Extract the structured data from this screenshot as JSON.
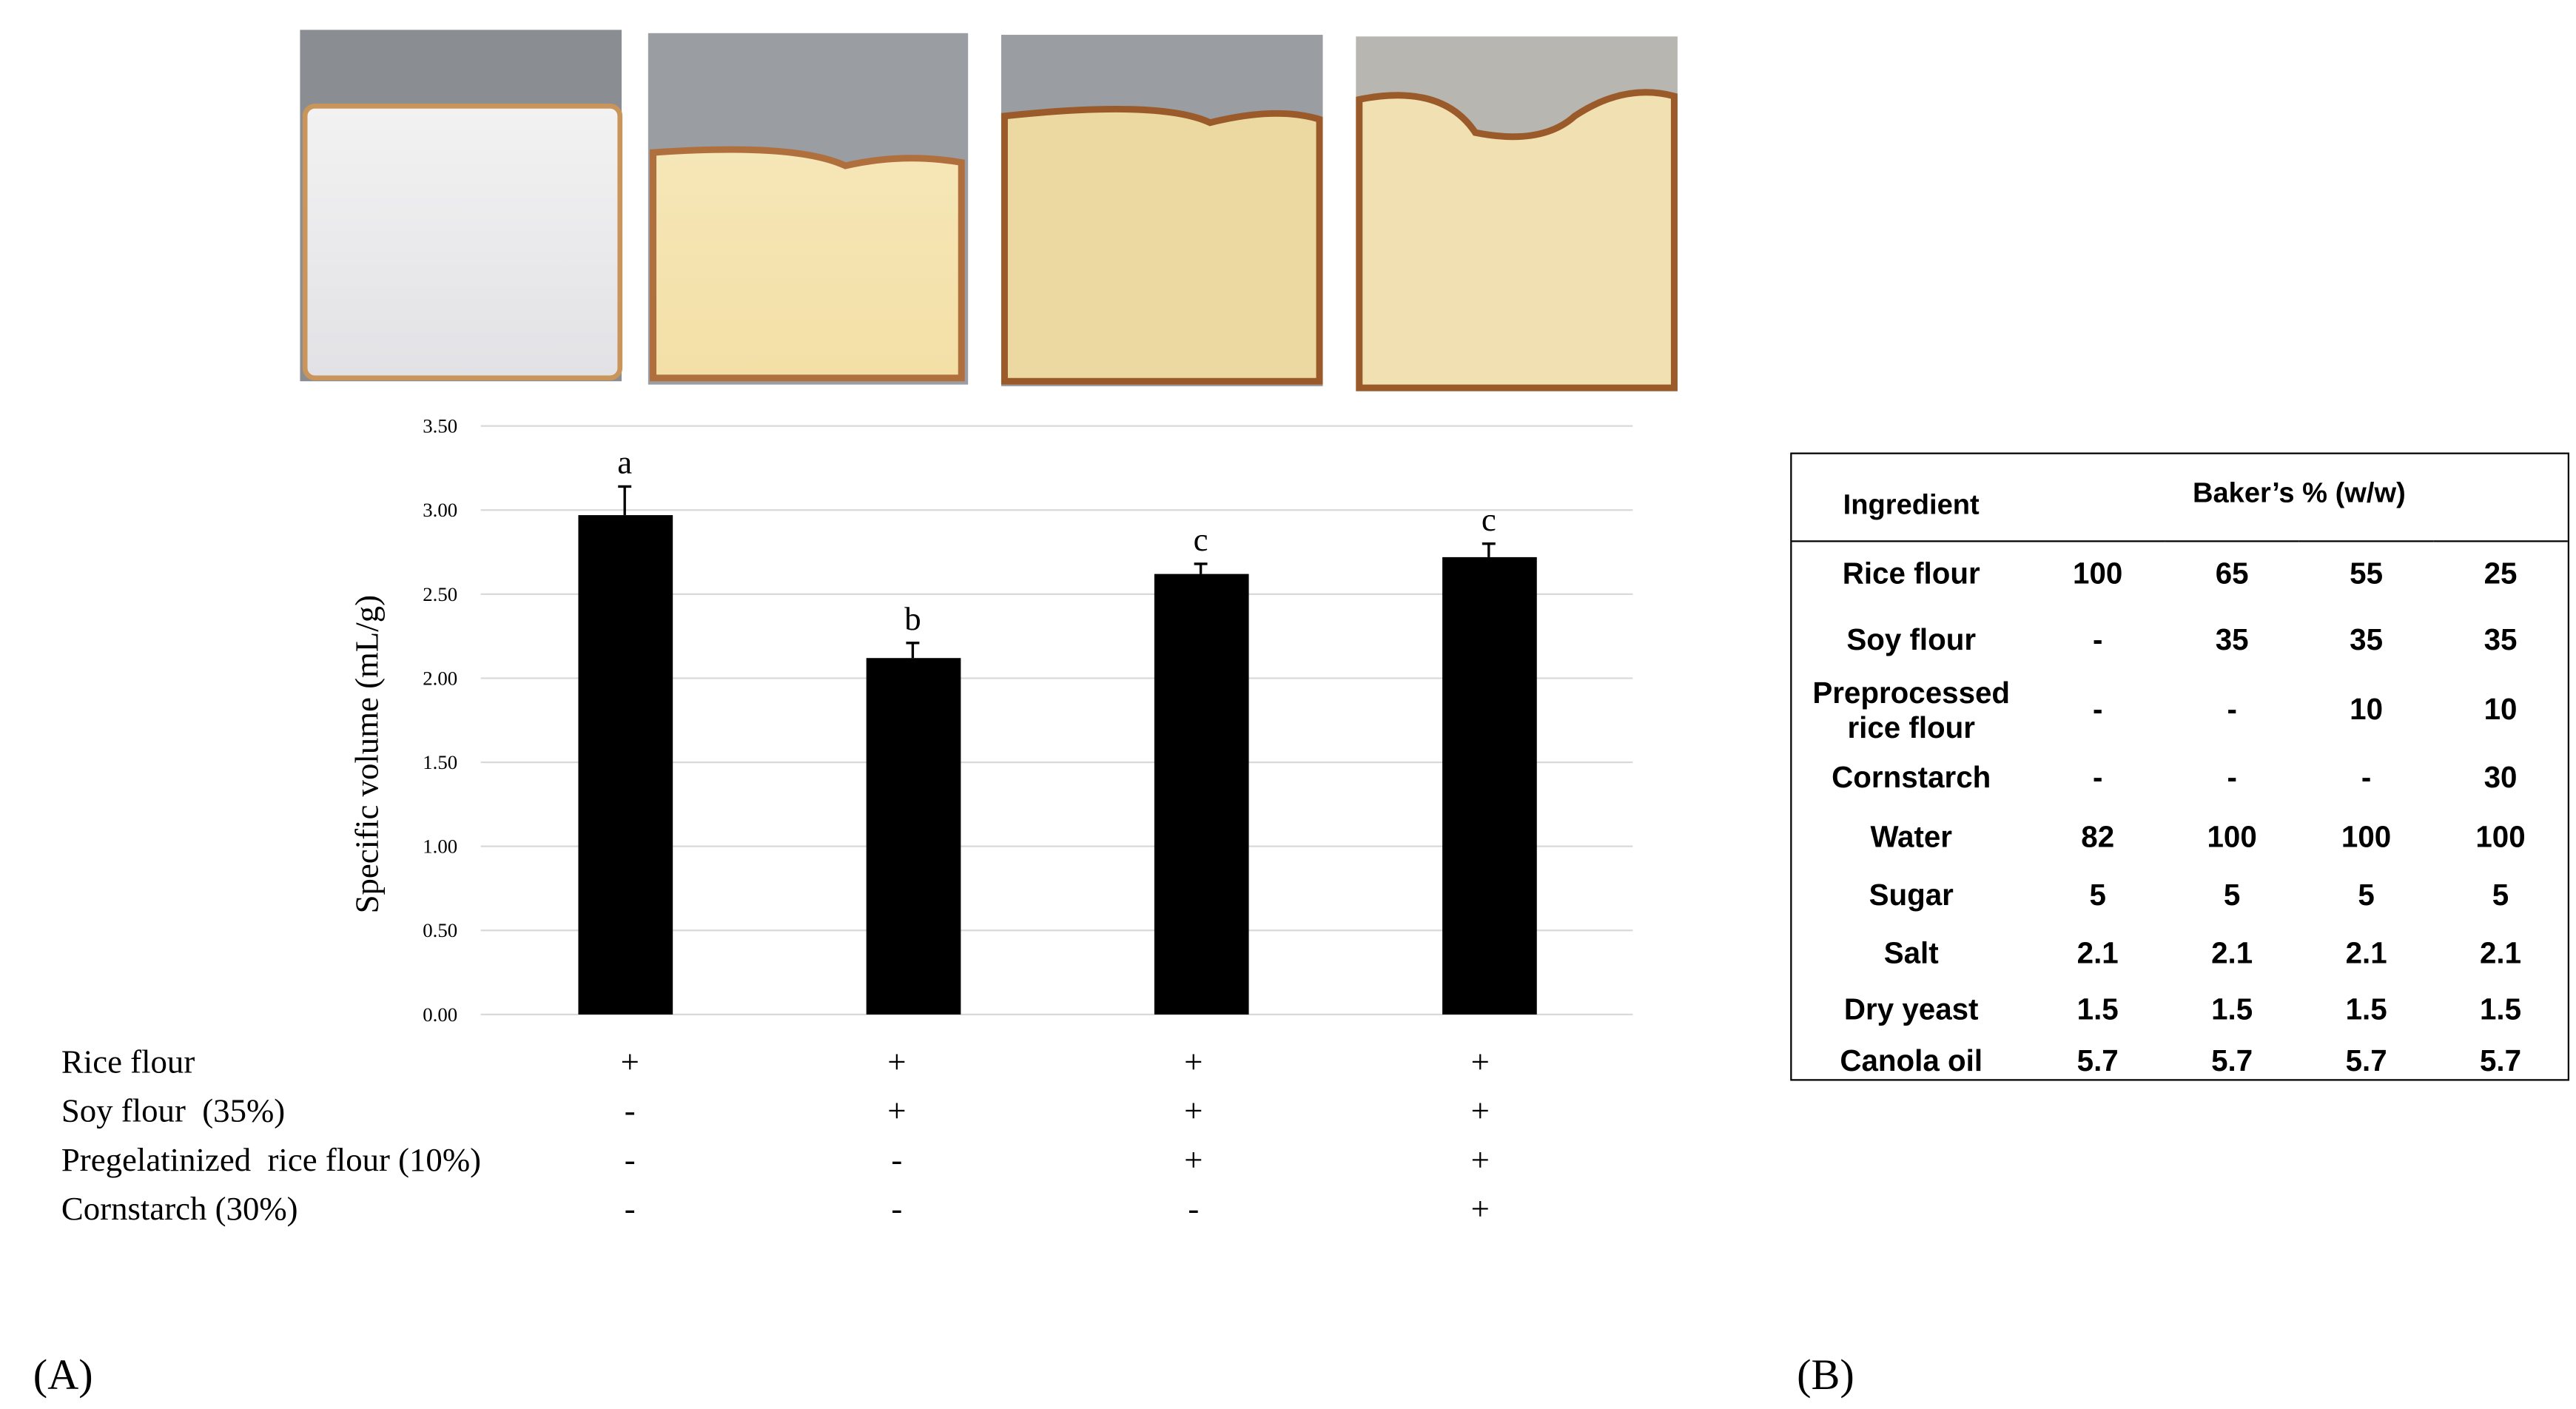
{
  "chart_data": {
    "type": "bar",
    "y_label": "Specific volume (mL/g)",
    "values": [
      2.97,
      2.12,
      2.62,
      2.72
    ],
    "errors": [
      0.17,
      0.09,
      0.06,
      0.08
    ],
    "annotations": [
      "a",
      "b",
      "c",
      "c"
    ],
    "color": "#000000",
    "ylim": [
      0,
      3.5
    ],
    "yticks": [
      {
        "value": 0,
        "label": "0.00"
      },
      {
        "value": 0.5,
        "label": "0.50"
      },
      {
        "value": 1,
        "label": "1.00"
      },
      {
        "value": 1.5,
        "label": "1.50"
      },
      {
        "value": 2,
        "label": "2.00"
      },
      {
        "value": 2.5,
        "label": "2.50"
      },
      {
        "value": 3,
        "label": "3.00"
      },
      {
        "value": 3.5,
        "label": "3.50"
      }
    ],
    "grid": true,
    "treatments": [
      {
        "label": "Rice flour",
        "marks": [
          "+",
          "+",
          "+",
          "+"
        ]
      },
      {
        "label": "Soy flour  (35%)",
        "marks": [
          "-",
          "+",
          "+",
          "+"
        ]
      },
      {
        "label": "Pregelatinized  rice flour (10%)",
        "marks": [
          "-",
          "-",
          "+",
          "+"
        ]
      },
      {
        "label": "Cornstarch (30%)",
        "marks": [
          "-",
          "-",
          "-",
          "+"
        ]
      }
    ]
  },
  "panel_labels": [
    "(A)",
    "(B)"
  ],
  "table": {
    "header": [
      "Ingredient",
      "Baker’s % (w/w)"
    ],
    "rows": [
      [
        "Rice flour",
        100,
        65,
        55,
        25
      ],
      [
        "Soy flour",
        "-",
        35,
        35,
        35
      ],
      [
        "Preprocessed rice flour",
        "-",
        "-",
        10,
        10
      ],
      [
        "Cornstarch",
        "-",
        "-",
        "-",
        30
      ],
      [
        "Water",
        82,
        100,
        100,
        100
      ],
      [
        "Sugar",
        5,
        5,
        5,
        5
      ],
      [
        "Salt",
        2.1,
        2.1,
        2.1,
        2.1
      ],
      [
        "Dry yeast",
        1.5,
        1.5,
        1.5,
        1.5
      ],
      [
        "Canola oil",
        5.7,
        5.7,
        5.7,
        5.7
      ]
    ]
  }
}
